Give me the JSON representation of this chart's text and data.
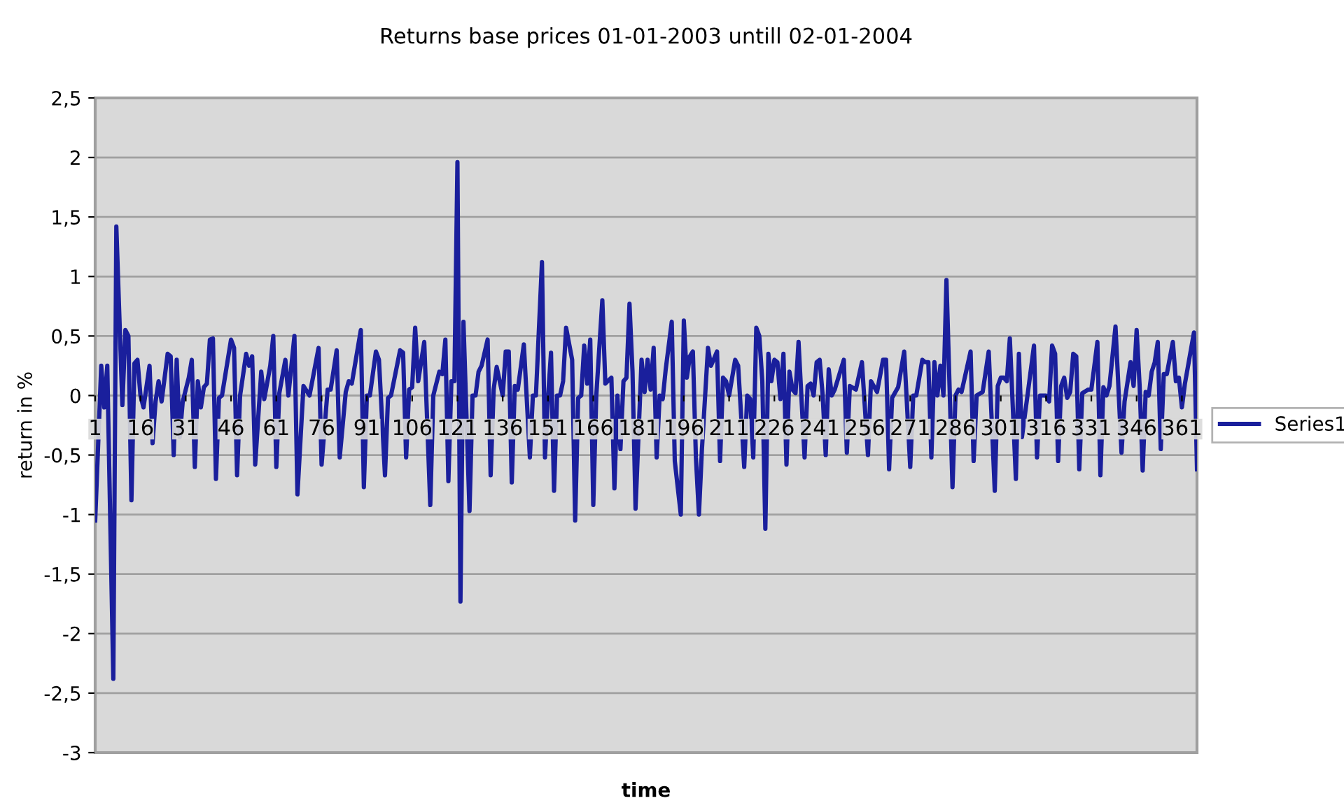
{
  "chart_data": {
    "type": "line",
    "title": "Returns base prices 01-01-2003 untill 02-01-2004",
    "xlabel": "time",
    "ylabel": "return in %",
    "x": [
      1,
      3,
      4,
      5,
      7,
      8,
      10,
      11,
      12,
      13,
      14,
      15,
      16,
      17,
      19,
      20,
      21,
      22,
      23,
      25,
      26,
      27,
      28,
      29,
      30,
      32,
      33,
      34,
      35,
      36,
      37,
      38,
      39,
      40,
      41,
      42,
      43,
      46,
      47,
      48,
      49,
      51,
      52,
      53,
      54,
      56,
      57,
      59,
      60,
      61,
      62,
      64,
      65,
      67,
      68,
      70,
      72,
      75,
      76,
      78,
      79,
      81,
      82,
      84,
      85,
      86,
      89,
      90,
      91,
      92,
      94,
      95,
      97,
      98,
      99,
      102,
      103,
      104,
      105,
      106,
      107,
      108,
      110,
      112,
      113,
      115,
      116,
      117,
      118,
      119,
      120,
      121,
      122,
      123,
      125,
      126,
      127,
      128,
      129,
      131,
      132,
      133,
      134,
      136,
      137,
      138,
      139,
      140,
      141,
      143,
      145,
      146,
      147,
      149,
      150,
      151,
      152,
      153,
      154,
      155,
      156,
      157,
      159,
      160,
      161,
      162,
      163,
      164,
      165,
      166,
      167,
      169,
      170,
      172,
      173,
      174,
      175,
      176,
      177,
      178,
      179,
      180,
      182,
      183,
      184,
      185,
      186,
      187,
      188,
      189,
      190,
      192,
      193,
      195,
      196,
      197,
      198,
      199,
      200,
      201,
      202,
      204,
      205,
      207,
      208,
      209,
      210,
      211,
      213,
      214,
      216,
      217,
      218,
      219,
      220,
      221,
      222,
      223,
      224,
      225,
      226,
      227,
      228,
      229,
      230,
      231,
      232,
      233,
      234,
      236,
      237,
      238,
      239,
      240,
      241,
      242,
      243,
      244,
      245,
      246,
      249,
      250,
      251,
      253,
      255,
      257,
      258,
      260,
      262,
      263,
      264,
      265,
      267,
      269,
      271,
      272,
      273,
      275,
      276,
      277,
      278,
      279,
      280,
      281,
      282,
      283,
      285,
      286,
      287,
      288,
      291,
      292,
      293,
      295,
      297,
      299,
      300,
      301,
      302,
      303,
      304,
      306,
      307,
      308,
      310,
      312,
      313,
      314,
      316,
      317,
      318,
      319,
      320,
      321,
      322,
      323,
      324,
      325,
      326,
      327,
      328,
      330,
      331,
      333,
      334,
      335,
      336,
      337,
      339,
      341,
      342,
      344,
      345,
      346,
      347,
      348,
      349,
      350,
      351,
      352,
      353,
      354,
      355,
      356,
      358,
      359,
      360,
      361,
      362,
      365,
      366
    ],
    "series": [
      {
        "name": "Series1",
        "color": "#1a1f9c",
        "values": [
          -1.05,
          0.25,
          -0.1,
          0.25,
          -2.38,
          1.42,
          -0.08,
          0.55,
          0.5,
          -0.88,
          0.27,
          0.3,
          0.0,
          -0.1,
          0.25,
          -0.4,
          -0.05,
          0.12,
          -0.05,
          0.35,
          0.33,
          -0.5,
          0.3,
          -0.35,
          -0.05,
          0.15,
          0.3,
          -0.6,
          0.12,
          -0.1,
          0.07,
          0.1,
          0.47,
          0.48,
          -0.7,
          -0.02,
          0.0,
          0.47,
          0.4,
          -0.67,
          0.0,
          0.35,
          0.25,
          0.33,
          -0.58,
          0.2,
          -0.03,
          0.25,
          0.5,
          -0.6,
          0.02,
          0.3,
          0.0,
          0.5,
          -0.83,
          0.08,
          0.0,
          0.4,
          -0.58,
          0.05,
          0.05,
          0.38,
          -0.52,
          0.03,
          0.12,
          0.1,
          0.55,
          -0.77,
          0.0,
          0.0,
          0.37,
          0.3,
          -0.67,
          -0.02,
          0.0,
          0.38,
          0.36,
          -0.52,
          0.05,
          0.07,
          0.57,
          0.12,
          0.45,
          -0.92,
          0.0,
          0.2,
          0.18,
          0.47,
          -0.72,
          0.12,
          0.12,
          1.96,
          -1.73,
          0.62,
          -0.97,
          0.0,
          0.0,
          0.2,
          0.25,
          0.47,
          -0.67,
          0.05,
          0.24,
          0.0,
          0.37,
          0.37,
          -0.73,
          0.08,
          0.05,
          0.43,
          -0.52,
          0.0,
          0.0,
          1.12,
          -0.52,
          -0.02,
          0.36,
          -0.8,
          0.0,
          0.0,
          0.12,
          0.57,
          0.3,
          -1.05,
          -0.02,
          0.0,
          0.42,
          0.1,
          0.47,
          -0.92,
          0.0,
          0.8,
          0.1,
          0.15,
          -0.78,
          0.0,
          -0.45,
          0.12,
          0.15,
          0.77,
          0.2,
          -0.95,
          0.3,
          0.03,
          0.3,
          0.05,
          0.4,
          -0.52,
          0.0,
          -0.03,
          0.22,
          0.62,
          -0.55,
          -1.0,
          0.63,
          0.15,
          0.33,
          0.37,
          -0.52,
          -1.0,
          -0.45,
          0.4,
          0.25,
          0.37,
          -0.55,
          0.15,
          0.12,
          0.0,
          0.3,
          0.25,
          -0.6,
          0.0,
          -0.03,
          -0.52,
          0.57,
          0.5,
          0.12,
          -1.12,
          0.35,
          0.12,
          0.3,
          0.28,
          -0.03,
          0.35,
          -0.58,
          0.2,
          0.05,
          0.02,
          0.45,
          -0.52,
          0.08,
          0.1,
          0.0,
          0.28,
          0.3,
          0.0,
          -0.5,
          0.22,
          0.0,
          0.05,
          0.3,
          -0.48,
          0.08,
          0.05,
          0.28,
          -0.5,
          0.12,
          0.03,
          0.3,
          0.3,
          -0.62,
          -0.02,
          0.07,
          0.37,
          -0.6,
          0.0,
          0.0,
          0.3,
          0.28,
          0.28,
          -0.52,
          0.28,
          0.0,
          0.25,
          0.0,
          0.97,
          -0.77,
          0.0,
          0.05,
          0.03,
          0.37,
          -0.55,
          0.0,
          0.03,
          0.37,
          -0.8,
          0.08,
          0.15,
          0.15,
          0.12,
          0.48,
          -0.7,
          0.35,
          -0.35,
          0.03,
          0.42,
          -0.52,
          0.0,
          0.0,
          -0.05,
          0.42,
          0.35,
          -0.55,
          0.08,
          0.15,
          -0.02,
          0.03,
          0.35,
          0.33,
          -0.62,
          0.02,
          0.05,
          0.05,
          0.45,
          -0.67,
          0.07,
          0.0,
          0.08,
          0.58,
          -0.48,
          -0.05,
          0.28,
          0.08,
          0.55,
          0.08,
          -0.63,
          0.03,
          0.0,
          0.2,
          0.28,
          0.45,
          -0.45,
          0.18,
          0.18,
          0.45,
          0.12,
          0.15,
          -0.1,
          0.1,
          0.53,
          -0.62
        ]
      }
    ],
    "xlim": [
      1,
      366
    ],
    "xticks": [
      1,
      16,
      31,
      46,
      61,
      76,
      91,
      106,
      121,
      136,
      151,
      166,
      181,
      196,
      211,
      226,
      241,
      256,
      271,
      286,
      301,
      316,
      331,
      346,
      361
    ],
    "ylim": [
      -3,
      2.5
    ],
    "yticks": [
      {
        "value": -3,
        "label": "-3"
      },
      {
        "value": -2.5,
        "label": "-2,5"
      },
      {
        "value": -2,
        "label": "-2"
      },
      {
        "value": -1.5,
        "label": "-1,5"
      },
      {
        "value": -1,
        "label": "-1"
      },
      {
        "value": -0.5,
        "label": "-0,5"
      },
      {
        "value": 0,
        "label": "0"
      },
      {
        "value": 0.5,
        "label": "0,5"
      },
      {
        "value": 1,
        "label": "1"
      },
      {
        "value": 1.5,
        "label": "1,5"
      },
      {
        "value": 2,
        "label": "2"
      },
      {
        "value": 2.5,
        "label": "2,5"
      }
    ],
    "grid": "y",
    "legend": "right",
    "marker": "none",
    "line_style": "solid"
  }
}
